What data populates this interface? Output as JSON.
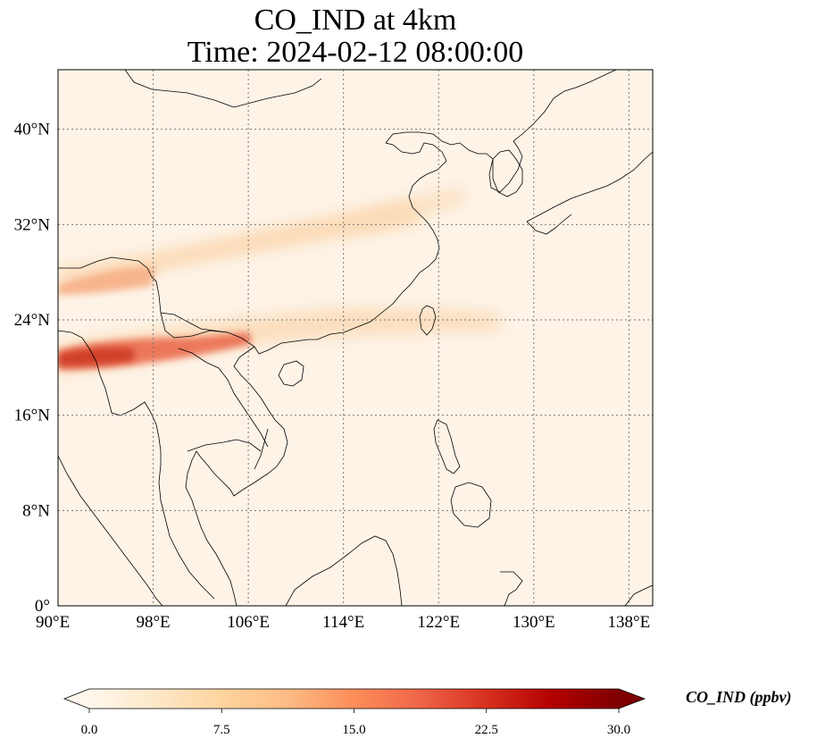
{
  "title": {
    "line1": "CO_IND at 4km",
    "line2": "Time: 2024-02-12 08:00:00"
  },
  "map": {
    "lon_range": [
      90,
      140
    ],
    "lat_range": [
      0,
      45
    ],
    "lon_ticks": [
      {
        "value": 90,
        "label": "90°E"
      },
      {
        "value": 98,
        "label": "98°E"
      },
      {
        "value": 106,
        "label": "106°E"
      },
      {
        "value": 114,
        "label": "114°E"
      },
      {
        "value": 122,
        "label": "122°E"
      },
      {
        "value": 130,
        "label": "130°E"
      },
      {
        "value": 138,
        "label": "138°E"
      }
    ],
    "lat_ticks": [
      {
        "value": 0,
        "label": "0°"
      },
      {
        "value": 8,
        "label": "8°N"
      },
      {
        "value": 16,
        "label": "16°N"
      },
      {
        "value": 24,
        "label": "24°N"
      },
      {
        "value": 32,
        "label": "32°N"
      },
      {
        "value": 40,
        "label": "40°N"
      }
    ],
    "gridlines": true,
    "colormap": "OrRd",
    "background_color": "#fdf3e7"
  },
  "colorbar": {
    "label": "CO_IND (ppbv)",
    "range": [
      0.0,
      30.0
    ],
    "ticks": [
      {
        "value": 0.0,
        "label": "0.0"
      },
      {
        "value": 7.5,
        "label": "7.5"
      },
      {
        "value": 15.0,
        "label": "15.0"
      },
      {
        "value": 22.5,
        "label": "22.5"
      },
      {
        "value": 30.0,
        "label": "30.0"
      }
    ],
    "extend": "both",
    "colors": [
      "#fff7ec",
      "#fee8c8",
      "#fdd49e",
      "#fdbb84",
      "#fc8d59",
      "#ef6548",
      "#d7301f",
      "#b30000",
      "#7f0000"
    ]
  }
}
